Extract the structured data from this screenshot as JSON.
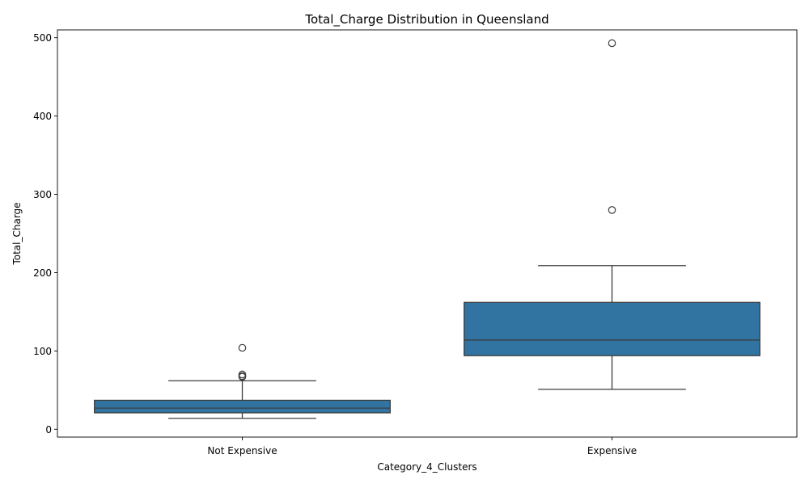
{
  "chart_data": {
    "type": "box",
    "title": "Total_Charge Distribution in Queensland",
    "xlabel": "Category_4_Clusters",
    "ylabel": "Total_Charge",
    "ylim": [
      -10,
      510
    ],
    "yticks": [
      0,
      100,
      200,
      300,
      400,
      500
    ],
    "categories": [
      "Not Expensive",
      "Expensive"
    ],
    "box_color": "#3274a1",
    "boxes": [
      {
        "category": "Not Expensive",
        "whisker_low": 14,
        "q1": 21,
        "median": 27,
        "q3": 37,
        "whisker_high": 62,
        "outliers": [
          67,
          68,
          70,
          104
        ]
      },
      {
        "category": "Expensive",
        "whisker_low": 51,
        "q1": 94,
        "median": 114,
        "q3": 162,
        "whisker_high": 209,
        "outliers": [
          280,
          493
        ]
      }
    ],
    "grid": false,
    "legend": "none"
  }
}
